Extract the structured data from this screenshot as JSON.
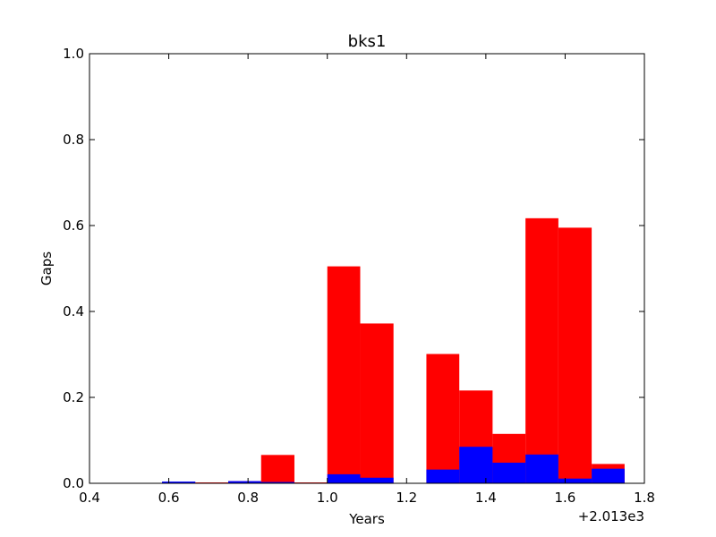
{
  "chart_data": {
    "type": "bar",
    "title": "bks1",
    "xlabel": "Years",
    "ylabel": "Gaps",
    "x_offset_label": "+2.013e3",
    "xlim": [
      0.4,
      1.8
    ],
    "ylim": [
      0.0,
      1.0
    ],
    "x_ticks": [
      0.4,
      0.6,
      0.8,
      1.0,
      1.2,
      1.4,
      1.6,
      1.8
    ],
    "x_tick_labels": [
      "0.4",
      "0.6",
      "0.8",
      "1.0",
      "1.2",
      "1.4",
      "1.6",
      "1.8"
    ],
    "y_ticks": [
      0.0,
      0.2,
      0.4,
      0.6,
      0.8,
      1.0
    ],
    "y_tick_labels": [
      "0.0",
      "0.2",
      "0.4",
      "0.6",
      "0.8",
      "1.0"
    ],
    "grid": false,
    "series": [
      {
        "color": "#ff0000",
        "bins": [
          {
            "x0": 0.583,
            "x1": 0.667,
            "value": 0.002
          },
          {
            "x0": 0.667,
            "x1": 0.75,
            "value": 0.002
          },
          {
            "x0": 0.75,
            "x1": 0.833,
            "value": 0.005
          },
          {
            "x0": 0.833,
            "x1": 0.917,
            "value": 0.066
          },
          {
            "x0": 0.917,
            "x1": 1.0,
            "value": 0.002
          },
          {
            "x0": 1.0,
            "x1": 1.083,
            "value": 0.505
          },
          {
            "x0": 1.083,
            "x1": 1.167,
            "value": 0.372
          },
          {
            "x0": 1.25,
            "x1": 1.333,
            "value": 0.301
          },
          {
            "x0": 1.333,
            "x1": 1.417,
            "value": 0.216
          },
          {
            "x0": 1.417,
            "x1": 1.5,
            "value": 0.115
          },
          {
            "x0": 1.5,
            "x1": 1.583,
            "value": 0.617
          },
          {
            "x0": 1.583,
            "x1": 1.667,
            "value": 0.595
          },
          {
            "x0": 1.667,
            "x1": 1.75,
            "value": 0.045
          }
        ]
      },
      {
        "color": "#0000ff",
        "bins": [
          {
            "x0": 0.583,
            "x1": 0.667,
            "value": 0.004
          },
          {
            "x0": 0.75,
            "x1": 0.833,
            "value": 0.005
          },
          {
            "x0": 0.833,
            "x1": 0.917,
            "value": 0.003
          },
          {
            "x0": 1.0,
            "x1": 1.083,
            "value": 0.021
          },
          {
            "x0": 1.083,
            "x1": 1.167,
            "value": 0.013
          },
          {
            "x0": 1.25,
            "x1": 1.333,
            "value": 0.032
          },
          {
            "x0": 1.333,
            "x1": 1.417,
            "value": 0.085
          },
          {
            "x0": 1.417,
            "x1": 1.5,
            "value": 0.048
          },
          {
            "x0": 1.5,
            "x1": 1.583,
            "value": 0.067
          },
          {
            "x0": 1.583,
            "x1": 1.667,
            "value": 0.011
          },
          {
            "x0": 1.667,
            "x1": 1.75,
            "value": 0.034
          }
        ]
      }
    ]
  }
}
